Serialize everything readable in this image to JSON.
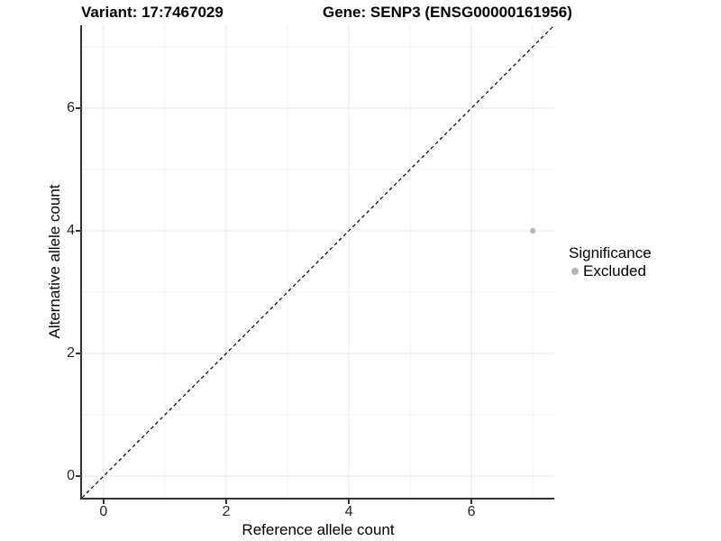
{
  "titles": {
    "variant": "Variant: 17:7467029",
    "gene": "Gene: SENP3 (ENSG00000161956)"
  },
  "axes": {
    "x_label": "Reference allele count",
    "y_label": "Alternative allele count"
  },
  "legend": {
    "title": "Significance",
    "items": [
      {
        "label": "Excluded",
        "color": "#b4b4b4"
      }
    ]
  },
  "chart_data": {
    "type": "scatter",
    "title": "Variant: 17:7467029 | Gene: SENP3 (ENSG00000161956)",
    "xlabel": "Reference allele count",
    "ylabel": "Alternative allele count",
    "xlim": [
      -0.35,
      7.35
    ],
    "ylim": [
      -0.35,
      7.35
    ],
    "x_ticks": [
      0,
      2,
      4,
      6
    ],
    "y_ticks": [
      0,
      2,
      4,
      6
    ],
    "x_minor_ticks": [
      1,
      3,
      5,
      7
    ],
    "y_minor_ticks": [
      1,
      3,
      5,
      7
    ],
    "grid": "major and minor gridlines on white background",
    "legend_position": "right",
    "series": [
      {
        "name": "Excluded",
        "color": "#b4b4b4",
        "points": [
          {
            "x": 7,
            "y": 4
          }
        ],
        "point_radius_px": 3
      }
    ],
    "reference_line": {
      "style": "dashed",
      "color": "#000000",
      "equation": "y = x"
    },
    "style": {
      "axis_line_color": "#333333",
      "grid_major_color": "#e7e7e7",
      "grid_minor_color": "#f1f1f1",
      "tick_text_color": "#262626"
    }
  }
}
